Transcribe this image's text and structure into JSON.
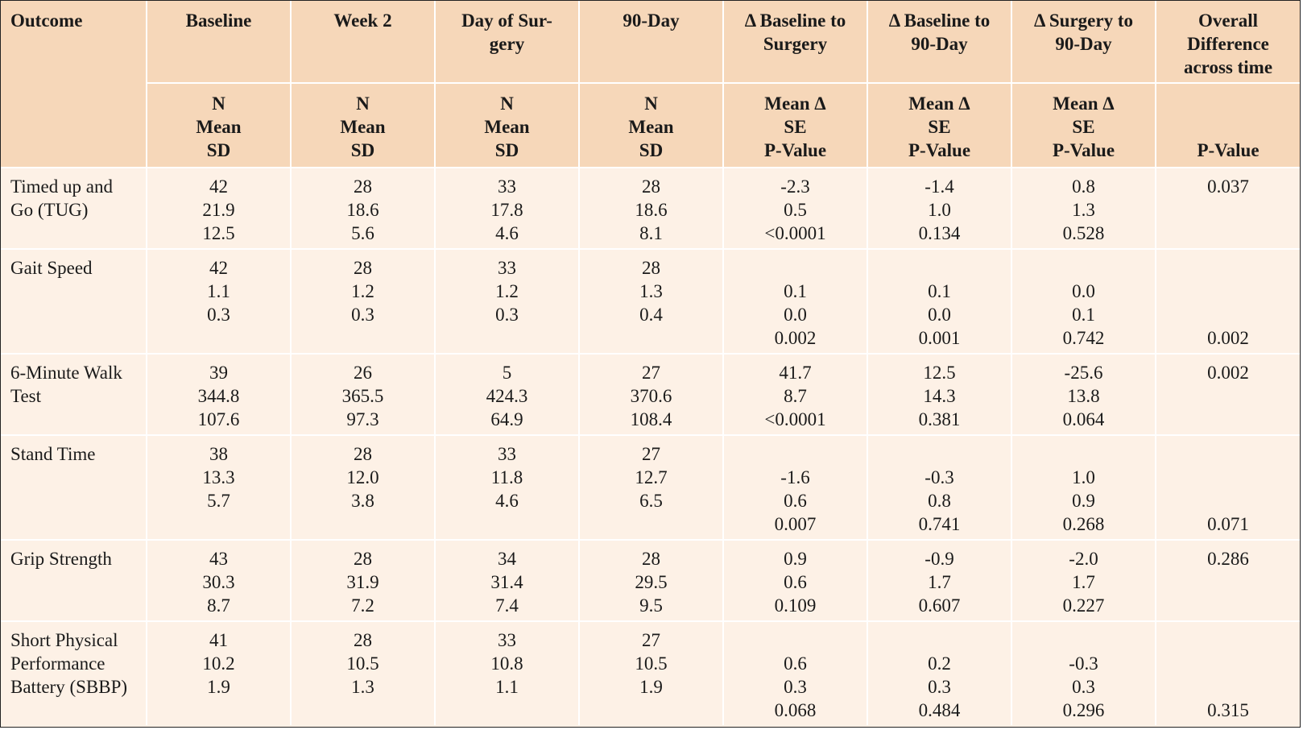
{
  "header": {
    "outcome": "Outcome",
    "columns": [
      "Baseline",
      "Week 2",
      "Day of Sur-\ngery",
      "90-Day",
      "Δ Baseline to\nSurgery",
      "Δ Baseline to\n90-Day",
      "Δ Surgery to\n90-Day",
      "Overall\nDifference\nacross time"
    ],
    "sub_desc": [
      "N\nMean\nSD",
      "N\nMean\nSD",
      "N\nMean\nSD",
      "N\nMean\nSD",
      "Mean Δ\nSE\nP-Value",
      "Mean Δ\nSE\nP-Value",
      "Mean Δ\nSE\nP-Value",
      "P-Value"
    ]
  },
  "rows": [
    {
      "outcome": [
        "Timed up and",
        "Go (TUG)"
      ],
      "baseline": [
        "42",
        "21.9",
        "12.5"
      ],
      "week2": [
        "28",
        "18.6",
        "5.6"
      ],
      "surgery": [
        "33",
        "17.8",
        "4.6"
      ],
      "day90": [
        "28",
        "18.6",
        "8.1"
      ],
      "d_base_surg": [
        "-2.3",
        "0.5",
        "<0.0001"
      ],
      "d_base_90": [
        "-1.4",
        "1.0",
        "0.134"
      ],
      "d_surg_90": [
        "0.8",
        "1.3",
        "0.528"
      ],
      "overall_p": "0.037",
      "delta_offset": false
    },
    {
      "outcome": [
        "Gait Speed"
      ],
      "baseline": [
        "42",
        "1.1",
        "0.3"
      ],
      "week2": [
        "28",
        "1.2",
        "0.3"
      ],
      "surgery": [
        "33",
        "1.2",
        "0.3"
      ],
      "day90": [
        "28",
        "1.3",
        "0.4"
      ],
      "d_base_surg": [
        "0.1",
        "0.0",
        "0.002"
      ],
      "d_base_90": [
        "0.1",
        "0.0",
        "0.001"
      ],
      "d_surg_90": [
        "0.0",
        "0.1",
        "0.742"
      ],
      "overall_p": "0.002",
      "delta_offset": true
    },
    {
      "outcome": [
        "6-Minute Walk",
        "Test"
      ],
      "baseline": [
        "39",
        "344.8",
        "107.6"
      ],
      "week2": [
        "26",
        "365.5",
        "97.3"
      ],
      "surgery": [
        "5",
        "424.3",
        "64.9"
      ],
      "day90": [
        "27",
        "370.6",
        "108.4"
      ],
      "d_base_surg": [
        "41.7",
        "8.7",
        "<0.0001"
      ],
      "d_base_90": [
        "12.5",
        "14.3",
        "0.381"
      ],
      "d_surg_90": [
        "-25.6",
        "13.8",
        "0.064"
      ],
      "overall_p": "0.002",
      "delta_offset": false
    },
    {
      "outcome": [
        "Stand Time"
      ],
      "baseline": [
        "38",
        "13.3",
        "5.7"
      ],
      "week2": [
        "28",
        "12.0",
        "3.8"
      ],
      "surgery": [
        "33",
        "11.8",
        "4.6"
      ],
      "day90": [
        "27",
        "12.7",
        "6.5"
      ],
      "d_base_surg": [
        "-1.6",
        "0.6",
        "0.007"
      ],
      "d_base_90": [
        "-0.3",
        "0.8",
        "0.741"
      ],
      "d_surg_90": [
        "1.0",
        "0.9",
        "0.268"
      ],
      "overall_p": "0.071",
      "delta_offset": true
    },
    {
      "outcome": [
        "Grip Strength"
      ],
      "baseline": [
        "43",
        "30.3",
        "8.7"
      ],
      "week2": [
        "28",
        "31.9",
        "7.2"
      ],
      "surgery": [
        "34",
        "31.4",
        "7.4"
      ],
      "day90": [
        "28",
        "29.5",
        "9.5"
      ],
      "d_base_surg": [
        "0.9",
        "0.6",
        "0.109"
      ],
      "d_base_90": [
        "-0.9",
        "1.7",
        "0.607"
      ],
      "d_surg_90": [
        "-2.0",
        "1.7",
        "0.227"
      ],
      "overall_p": "0.286",
      "delta_offset": false
    },
    {
      "outcome": [
        "Short Physical",
        "Performance",
        "Battery (SBBP)"
      ],
      "baseline": [
        "41",
        "10.2",
        "1.9"
      ],
      "week2": [
        "28",
        "10.5",
        "1.3"
      ],
      "surgery": [
        "33",
        "10.8",
        "1.1"
      ],
      "day90": [
        "27",
        "10.5",
        "1.9"
      ],
      "d_base_surg": [
        "0.6",
        "0.3",
        "0.068"
      ],
      "d_base_90": [
        "0.2",
        "0.3",
        "0.484"
      ],
      "d_surg_90": [
        "-0.3",
        "0.3",
        "0.296"
      ],
      "overall_p": "0.315",
      "delta_offset": true
    }
  ]
}
